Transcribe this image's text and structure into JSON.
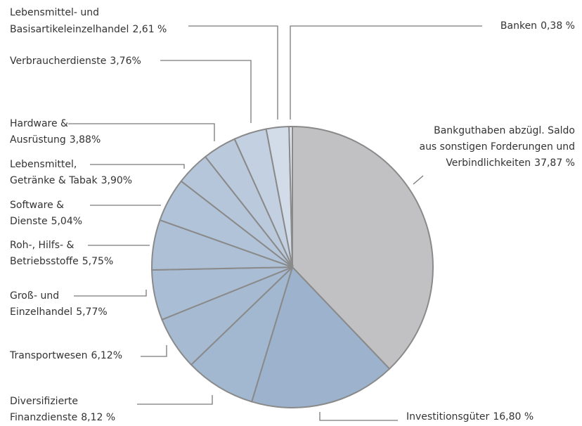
{
  "chart_data": {
    "type": "pie",
    "categories": [
      [
        "Bankguthaben abzügl. Saldo",
        "aus sonstigen Forderungen und",
        "Verbindlichkeiten"
      ],
      [
        "Investitionsgüter"
      ],
      [
        "Diversifizierte",
        "Finanzdienste"
      ],
      [
        "Transportwesen"
      ],
      [
        "Groß- und",
        "Einzelhandel"
      ],
      [
        "Roh-, Hilfs- &",
        "Betriebsstoffe"
      ],
      [
        "Software &",
        "Dienste"
      ],
      [
        "Lebensmittel,",
        "Getränke & Tabak"
      ],
      [
        "Hardware &",
        "Ausrüstung"
      ],
      [
        "Verbraucherdienste"
      ],
      [
        "Lebensmittel- und",
        "Basisartikeleinzelhandel"
      ],
      [
        "Banken"
      ]
    ],
    "values": [
      37.87,
      16.8,
      8.12,
      6.12,
      5.77,
      5.75,
      5.04,
      3.9,
      3.88,
      3.76,
      2.61,
      0.38
    ],
    "value_labels": [
      "37,87 %",
      "16,80 %",
      "8,12 %",
      "6,12%",
      "5,77%",
      "5,75%",
      "5,04%",
      "3,90%",
      "3,88%",
      "3,76%",
      "2,61 %",
      "0,38 %"
    ],
    "colors": [
      "#c1c1c3",
      "#9cb2cd",
      "#a2b7d0",
      "#a6bad2",
      "#a9bdd4",
      "#adc0d6",
      "#b1c3d8",
      "#b5c6da",
      "#bac9dc",
      "#c2d0e1",
      "#d2dce8",
      "#e2e8f0"
    ]
  }
}
